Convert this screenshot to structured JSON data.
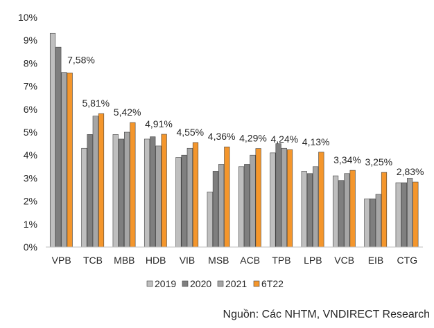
{
  "chart_data": {
    "type": "bar",
    "categories": [
      "VPB",
      "TCB",
      "MBB",
      "HDB",
      "VIB",
      "MSB",
      "ACB",
      "TPB",
      "LPB",
      "VCB",
      "EIB",
      "CTG"
    ],
    "series": [
      {
        "name": "2019",
        "color": "#bfbfbf",
        "values": [
          9.3,
          4.3,
          4.9,
          4.7,
          3.9,
          2.4,
          3.5,
          4.1,
          3.3,
          3.1,
          2.1,
          2.8
        ]
      },
      {
        "name": "2020",
        "color": "#7f7f7f",
        "values": [
          8.7,
          4.9,
          4.7,
          4.8,
          4.0,
          3.3,
          3.6,
          4.5,
          3.2,
          2.9,
          2.1,
          2.8
        ]
      },
      {
        "name": "2021",
        "color": "#a6a6a6",
        "values": [
          7.6,
          5.7,
          5.0,
          4.4,
          4.3,
          3.6,
          4.0,
          4.3,
          3.5,
          3.2,
          2.3,
          3.0
        ]
      },
      {
        "name": "6T22",
        "color": "#f4962c",
        "values": [
          7.58,
          5.81,
          5.42,
          4.91,
          4.55,
          4.36,
          4.29,
          4.24,
          4.13,
          3.34,
          3.25,
          2.83
        ]
      }
    ],
    "data_labels": [
      "7,58%",
      "5,81%",
      "5,42%",
      "4,91%",
      "4,55%",
      "4,36%",
      "4,29%",
      "4,24%",
      "4,13%",
      "3,34%",
      "3,25%",
      "2,83%"
    ],
    "y_ticks": [
      "0%",
      "1%",
      "2%",
      "3%",
      "4%",
      "5%",
      "6%",
      "7%",
      "8%",
      "9%",
      "10%"
    ],
    "ylim": [
      0,
      10
    ],
    "grid": false,
    "legend_position": "bottom"
  },
  "source_note": "Nguồn: Các NHTM, VNDIRECT Research"
}
